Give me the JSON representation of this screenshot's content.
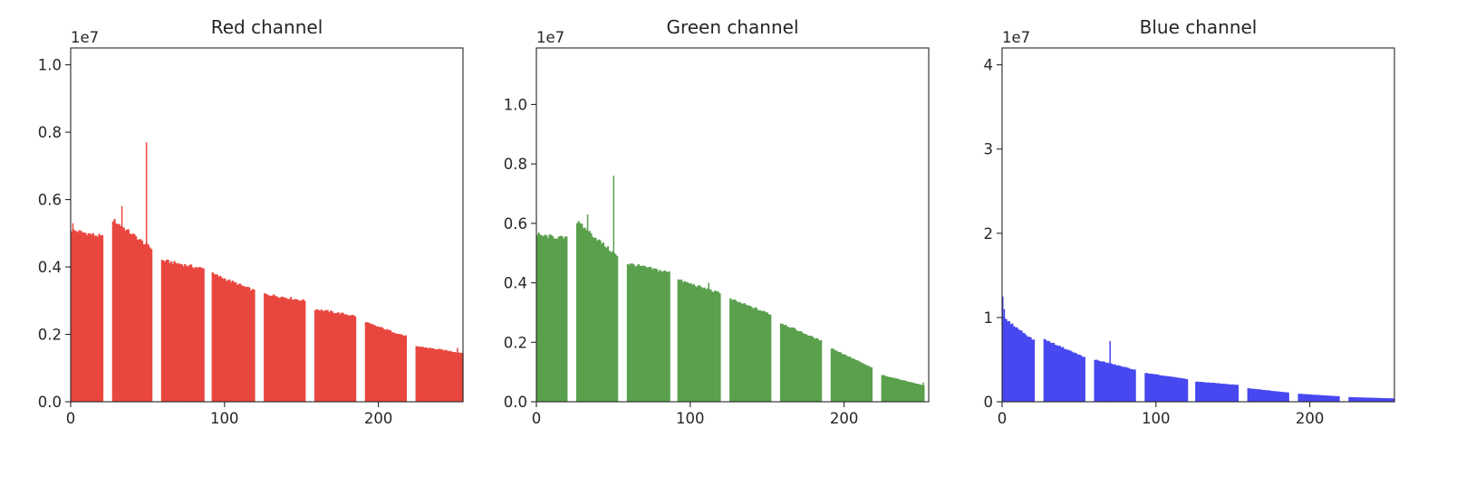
{
  "figure": {
    "background": "#ffffff"
  },
  "chart_data": [
    {
      "type": "bar",
      "title": "Red channel",
      "color": "#e8473f",
      "xlabel": "",
      "ylabel": "",
      "xlim": [
        0,
        255
      ],
      "ylim": [
        0,
        10500000
      ],
      "y_scale_label": "1e7",
      "xticks": [
        0,
        100,
        200
      ],
      "xtick_labels": [
        "0",
        "100",
        "200"
      ],
      "yticks": [
        0,
        2000000,
        4000000,
        6000000,
        8000000,
        10000000
      ],
      "ytick_labels": [
        "0.0",
        "0.2",
        "0.4",
        "0.6",
        "0.8",
        "1.0"
      ],
      "segments": [
        {
          "start": 0,
          "end": 20,
          "from": 5100000,
          "to": 4900000
        },
        {
          "start": 27,
          "end": 52,
          "from": 5400000,
          "to": 4550000
        },
        {
          "start": 59,
          "end": 86,
          "from": 4200000,
          "to": 3950000
        },
        {
          "start": 92,
          "end": 119,
          "from": 3800000,
          "to": 3300000
        },
        {
          "start": 126,
          "end": 152,
          "from": 3200000,
          "to": 3000000
        },
        {
          "start": 159,
          "end": 185,
          "from": 2750000,
          "to": 2550000
        },
        {
          "start": 192,
          "end": 218,
          "from": 2350000,
          "to": 1950000
        },
        {
          "start": 225,
          "end": 255,
          "from": 1650000,
          "to": 1450000
        }
      ],
      "spikes": [
        {
          "x": 49,
          "value": 7700000
        },
        {
          "x": 33,
          "value": 5800000
        },
        {
          "x": 1,
          "value": 5300000
        },
        {
          "x": 252,
          "value": 1600000
        },
        {
          "x": 236,
          "value": 1550000
        }
      ]
    },
    {
      "type": "bar",
      "title": "Green channel",
      "color": "#5aa04d",
      "xlabel": "",
      "ylabel": "",
      "xlim": [
        0,
        255
      ],
      "ylim": [
        0,
        11900000
      ],
      "y_scale_label": "1e7",
      "xticks": [
        0,
        100,
        200
      ],
      "xtick_labels": [
        "0",
        "100",
        "200"
      ],
      "yticks": [
        0,
        2000000,
        4000000,
        6000000,
        8000000,
        10000000
      ],
      "ytick_labels": [
        "0.0",
        "0.2",
        "0.4",
        "0.6",
        "0.8",
        "1.0"
      ],
      "segments": [
        {
          "start": 0,
          "end": 19,
          "from": 5600000,
          "to": 5500000
        },
        {
          "start": 26,
          "end": 52,
          "from": 6050000,
          "to": 4900000
        },
        {
          "start": 59,
          "end": 86,
          "from": 4650000,
          "to": 4350000
        },
        {
          "start": 92,
          "end": 119,
          "from": 4100000,
          "to": 3650000
        },
        {
          "start": 126,
          "end": 152,
          "from": 3450000,
          "to": 2950000
        },
        {
          "start": 159,
          "end": 185,
          "from": 2650000,
          "to": 2050000
        },
        {
          "start": 192,
          "end": 218,
          "from": 1800000,
          "to": 1150000
        },
        {
          "start": 225,
          "end": 252,
          "from": 900000,
          "to": 550000
        }
      ],
      "spikes": [
        {
          "x": 50,
          "value": 7600000
        },
        {
          "x": 33,
          "value": 6300000
        },
        {
          "x": 1,
          "value": 5700000
        },
        {
          "x": 112,
          "value": 4000000
        },
        {
          "x": 252,
          "value": 650000
        }
      ]
    },
    {
      "type": "bar",
      "title": "Blue channel",
      "color": "#4848f0",
      "xlabel": "",
      "ylabel": "",
      "xlim": [
        0,
        255
      ],
      "ylim": [
        0,
        42000000
      ],
      "y_scale_label": "1e7",
      "xticks": [
        0,
        100,
        200
      ],
      "xtick_labels": [
        "0",
        "100",
        "200"
      ],
      "yticks": [
        0,
        10000000,
        20000000,
        30000000,
        40000000
      ],
      "ytick_labels": [
        "0",
        "1",
        "2",
        "3",
        "4"
      ],
      "segments": [
        {
          "start": 0,
          "end": 20,
          "from": 10000000,
          "to": 7300000
        },
        {
          "start": 27,
          "end": 53,
          "from": 7400000,
          "to": 5300000
        },
        {
          "start": 60,
          "end": 86,
          "from": 5000000,
          "to": 3800000
        },
        {
          "start": 93,
          "end": 120,
          "from": 3400000,
          "to": 2700000
        },
        {
          "start": 126,
          "end": 153,
          "from": 2400000,
          "to": 2000000
        },
        {
          "start": 160,
          "end": 186,
          "from": 1600000,
          "to": 1100000
        },
        {
          "start": 193,
          "end": 219,
          "from": 950000,
          "to": 650000
        },
        {
          "start": 226,
          "end": 255,
          "from": 550000,
          "to": 400000
        }
      ],
      "spikes": [
        {
          "x": 0,
          "value": 12500000
        },
        {
          "x": 1,
          "value": 11000000
        },
        {
          "x": 70,
          "value": 7200000
        }
      ]
    }
  ]
}
